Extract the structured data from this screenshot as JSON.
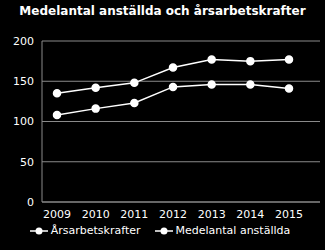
{
  "chart_data": {
    "type": "line",
    "title": "Medelantal anställda och årsarbetskrafter",
    "categories": [
      "2009",
      "2010",
      "2011",
      "2012",
      "2013",
      "2014",
      "2015"
    ],
    "series": [
      {
        "name": "Årsarbetskrafter",
        "color": "#ffffff",
        "marker": "circle",
        "values": [
          108,
          116,
          123,
          143,
          146,
          146,
          141
        ]
      },
      {
        "name": "Medelantal anställda",
        "color": "#ffffff",
        "marker": "circle",
        "values": [
          135,
          142,
          148,
          167,
          177,
          175,
          177
        ]
      }
    ],
    "ylim": [
      0,
      200
    ],
    "yticks": [
      0,
      50,
      100,
      150,
      200
    ],
    "grid": true,
    "legend": "bottom"
  }
}
